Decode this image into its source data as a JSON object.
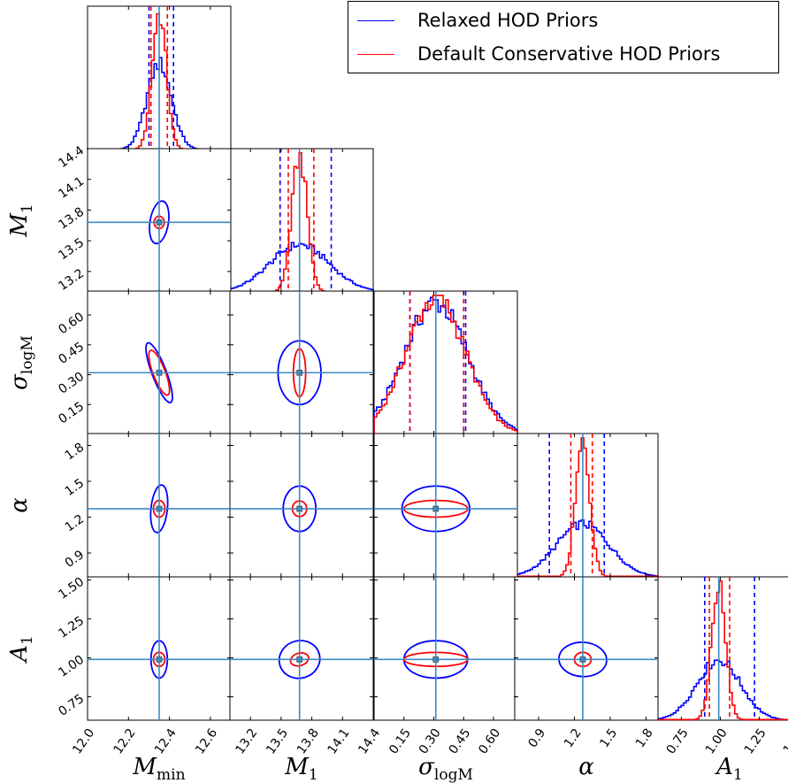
{
  "legend": {
    "items": [
      {
        "label": "Relaxed HOD Priors",
        "color": "#0000ff"
      },
      {
        "label": "Default Conservative HOD Priors",
        "color": "#ff0000"
      }
    ]
  },
  "chart_data": {
    "type": "corner",
    "colors": {
      "relaxed": "#0000ff",
      "default": "#ff0000",
      "truth": "#3b8ac4"
    },
    "parameters": [
      {
        "key": "Mmin",
        "label_main": "M",
        "label_sub": "min",
        "range": [
          12.0,
          12.7
        ],
        "ticks": [
          "12.0",
          "12.2",
          "12.4",
          "12.6"
        ],
        "tick_values": [
          12.0,
          12.2,
          12.4,
          12.6
        ],
        "truth": 12.35
      },
      {
        "key": "M1",
        "label_main": "M",
        "label_sub": "1",
        "range": [
          13.0,
          14.4
        ],
        "ticks": [
          "13.2",
          "13.5",
          "13.8",
          "14.1",
          "14.4"
        ],
        "tick_values": [
          13.2,
          13.5,
          13.8,
          14.1,
          14.4
        ],
        "truth": 13.68
      },
      {
        "key": "sigma_logM",
        "label_main": "σ",
        "label_sub": "logM",
        "range": [
          0.0,
          0.72
        ],
        "ticks": [
          "0.15",
          "0.30",
          "0.45",
          "0.60"
        ],
        "tick_values": [
          0.15,
          0.3,
          0.45,
          0.6
        ],
        "truth": 0.31
      },
      {
        "key": "alpha",
        "label_main": "α",
        "label_sub": "",
        "range": [
          0.7,
          1.9
        ],
        "ticks": [
          "0.9",
          "1.2",
          "1.5",
          "1.8"
        ],
        "tick_values": [
          0.9,
          1.2,
          1.5,
          1.8
        ],
        "truth": 1.27
      },
      {
        "key": "A1",
        "label_main": "A",
        "label_sub": "1",
        "range": [
          0.6,
          1.52
        ],
        "ticks": [
          "0.75",
          "1.00",
          "1.25",
          "1.50"
        ],
        "tick_values": [
          0.75,
          1.0,
          1.25,
          1.5
        ],
        "truth": 0.99
      }
    ],
    "diagonal": [
      {
        "relaxed": {
          "sigma": 0.06,
          "peak": 0.6,
          "quantiles": [
            12.3,
            12.42
          ]
        },
        "default": {
          "sigma": 0.035,
          "peak": 0.95,
          "quantiles": [
            12.31,
            12.39
          ]
        }
      },
      {
        "relaxed": {
          "sigma": 0.29,
          "peak": 0.33,
          "quantiles": [
            13.49,
            13.99
          ]
        },
        "default": {
          "sigma": 0.075,
          "peak": 0.95,
          "quantiles": [
            13.57,
            13.82
          ]
        }
      },
      {
        "relaxed": {
          "sigma": 0.16,
          "peak": 0.92,
          "quantiles": [
            0.18,
            0.46
          ]
        },
        "default": {
          "sigma": 0.15,
          "peak": 0.95,
          "quantiles": [
            0.18,
            0.45
          ]
        }
      },
      {
        "relaxed": {
          "sigma": 0.22,
          "peak": 0.37,
          "quantiles": [
            0.99,
            1.45
          ]
        },
        "default": {
          "sigma": 0.06,
          "peak": 0.93,
          "quantiles": [
            1.17,
            1.35
          ]
        }
      },
      {
        "relaxed": {
          "sigma": 0.14,
          "peak": 0.42,
          "quantiles": [
            0.9,
            1.22
          ]
        },
        "default": {
          "sigma": 0.045,
          "peak": 0.95,
          "quantiles": [
            0.93,
            1.06
          ]
        }
      }
    ],
    "pairs": [
      {
        "row": 1,
        "col": 0,
        "relaxed": {
          "rx": 0.045,
          "ry": 0.21,
          "tilt": -0.3
        },
        "default": {
          "rx": 0.025,
          "ry": 0.06,
          "tilt": 0.0
        }
      },
      {
        "row": 2,
        "col": 0,
        "relaxed": {
          "rx": 0.035,
          "ry": 0.16,
          "tilt": 0.7
        },
        "default": {
          "rx": 0.03,
          "ry": 0.12,
          "tilt": 0.7
        }
      },
      {
        "row": 2,
        "col": 1,
        "relaxed": {
          "rx": 0.21,
          "ry": 0.16,
          "tilt": 0.0
        },
        "default": {
          "rx": 0.06,
          "ry": 0.12,
          "tilt": 0.0
        }
      },
      {
        "row": 3,
        "col": 0,
        "relaxed": {
          "rx": 0.04,
          "ry": 0.2,
          "tilt": -0.2
        },
        "default": {
          "rx": 0.028,
          "ry": 0.07,
          "tilt": 0.0
        }
      },
      {
        "row": 3,
        "col": 1,
        "relaxed": {
          "rx": 0.16,
          "ry": 0.19,
          "tilt": 0.0
        },
        "default": {
          "rx": 0.07,
          "ry": 0.065,
          "tilt": 0.0
        }
      },
      {
        "row": 3,
        "col": 2,
        "relaxed": {
          "rx": 0.17,
          "ry": 0.19,
          "tilt": 0.0
        },
        "default": {
          "rx": 0.16,
          "ry": 0.07,
          "tilt": 0.0
        }
      },
      {
        "row": 4,
        "col": 0,
        "relaxed": {
          "rx": 0.04,
          "ry": 0.12,
          "tilt": 0.0
        },
        "default": {
          "rx": 0.028,
          "ry": 0.045,
          "tilt": 0.0
        }
      },
      {
        "row": 4,
        "col": 1,
        "relaxed": {
          "rx": 0.2,
          "ry": 0.12,
          "tilt": 0.55
        },
        "default": {
          "rx": 0.09,
          "ry": 0.04,
          "tilt": 0.55
        }
      },
      {
        "row": 4,
        "col": 2,
        "relaxed": {
          "rx": 0.16,
          "ry": 0.12,
          "tilt": 0.0
        },
        "default": {
          "rx": 0.16,
          "ry": 0.045,
          "tilt": 0.0
        }
      },
      {
        "row": 4,
        "col": 3,
        "relaxed": {
          "rx": 0.2,
          "ry": 0.11,
          "tilt": -0.1
        },
        "default": {
          "rx": 0.07,
          "ry": 0.045,
          "tilt": 0.0
        }
      }
    ]
  }
}
